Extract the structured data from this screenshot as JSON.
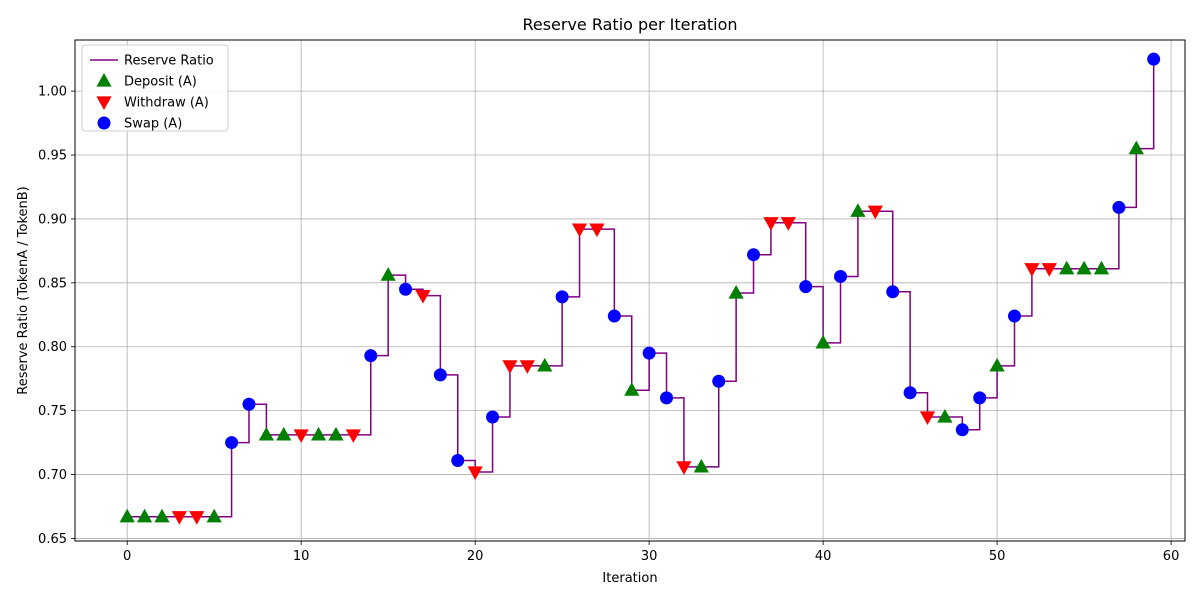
{
  "chart_data": {
    "type": "line",
    "title": "Reserve Ratio per Iteration",
    "xlabel": "Iteration",
    "ylabel": "Reserve Ratio (TokenA / TokenB)",
    "xlim": [
      -3,
      60.8
    ],
    "ylim": [
      0.648,
      1.04
    ],
    "xticks": [
      0,
      10,
      20,
      30,
      40,
      50,
      60
    ],
    "yticks": [
      0.65,
      0.7,
      0.75,
      0.8,
      0.85,
      0.9,
      0.95,
      1.0
    ],
    "grid": true,
    "legend_position": "top-left",
    "colors": {
      "line": "#800080",
      "deposit": "#008000",
      "withdraw": "#ff0000",
      "swap": "#0000ff"
    },
    "series_names": {
      "line": "Reserve Ratio",
      "deposit": "Deposit (A)",
      "withdraw": "Withdraw (A)",
      "swap": "Swap (A)"
    },
    "x": [
      0,
      1,
      2,
      3,
      4,
      5,
      6,
      7,
      8,
      9,
      10,
      11,
      12,
      13,
      14,
      15,
      16,
      17,
      18,
      19,
      20,
      21,
      22,
      23,
      24,
      25,
      26,
      27,
      28,
      29,
      30,
      31,
      32,
      33,
      34,
      35,
      36,
      37,
      38,
      39,
      40,
      41,
      42,
      43,
      44,
      45,
      46,
      47,
      48,
      49,
      50,
      51,
      52,
      53,
      54,
      55,
      56,
      57,
      58,
      59
    ],
    "y": [
      0.667,
      0.667,
      0.667,
      0.667,
      0.667,
      0.667,
      0.725,
      0.755,
      0.731,
      0.731,
      0.731,
      0.731,
      0.731,
      0.731,
      0.793,
      0.856,
      0.845,
      0.84,
      0.778,
      0.711,
      0.702,
      0.745,
      0.785,
      0.785,
      0.785,
      0.839,
      0.892,
      0.892,
      0.824,
      0.766,
      0.795,
      0.76,
      0.706,
      0.706,
      0.773,
      0.842,
      0.872,
      0.897,
      0.897,
      0.847,
      0.803,
      0.855,
      0.906,
      0.906,
      0.843,
      0.764,
      0.745,
      0.745,
      0.735,
      0.76,
      0.785,
      0.824,
      0.861,
      0.861,
      0.861,
      0.861,
      0.861,
      0.909,
      0.955,
      1.025
    ],
    "actions": [
      "deposit",
      "deposit",
      "deposit",
      "withdraw",
      "withdraw",
      "deposit",
      "swap",
      "swap",
      "deposit",
      "deposit",
      "withdraw",
      "deposit",
      "deposit",
      "withdraw",
      "swap",
      "deposit",
      "swap",
      "withdraw",
      "swap",
      "swap",
      "withdraw",
      "swap",
      "withdraw",
      "withdraw",
      "deposit",
      "swap",
      "withdraw",
      "withdraw",
      "swap",
      "deposit",
      "swap",
      "swap",
      "withdraw",
      "deposit",
      "swap",
      "deposit",
      "swap",
      "withdraw",
      "withdraw",
      "swap",
      "deposit",
      "swap",
      "deposit",
      "withdraw",
      "swap",
      "swap",
      "withdraw",
      "deposit",
      "swap",
      "swap",
      "deposit",
      "swap",
      "withdraw",
      "withdraw",
      "deposit",
      "deposit",
      "deposit",
      "swap",
      "deposit",
      "swap"
    ]
  }
}
